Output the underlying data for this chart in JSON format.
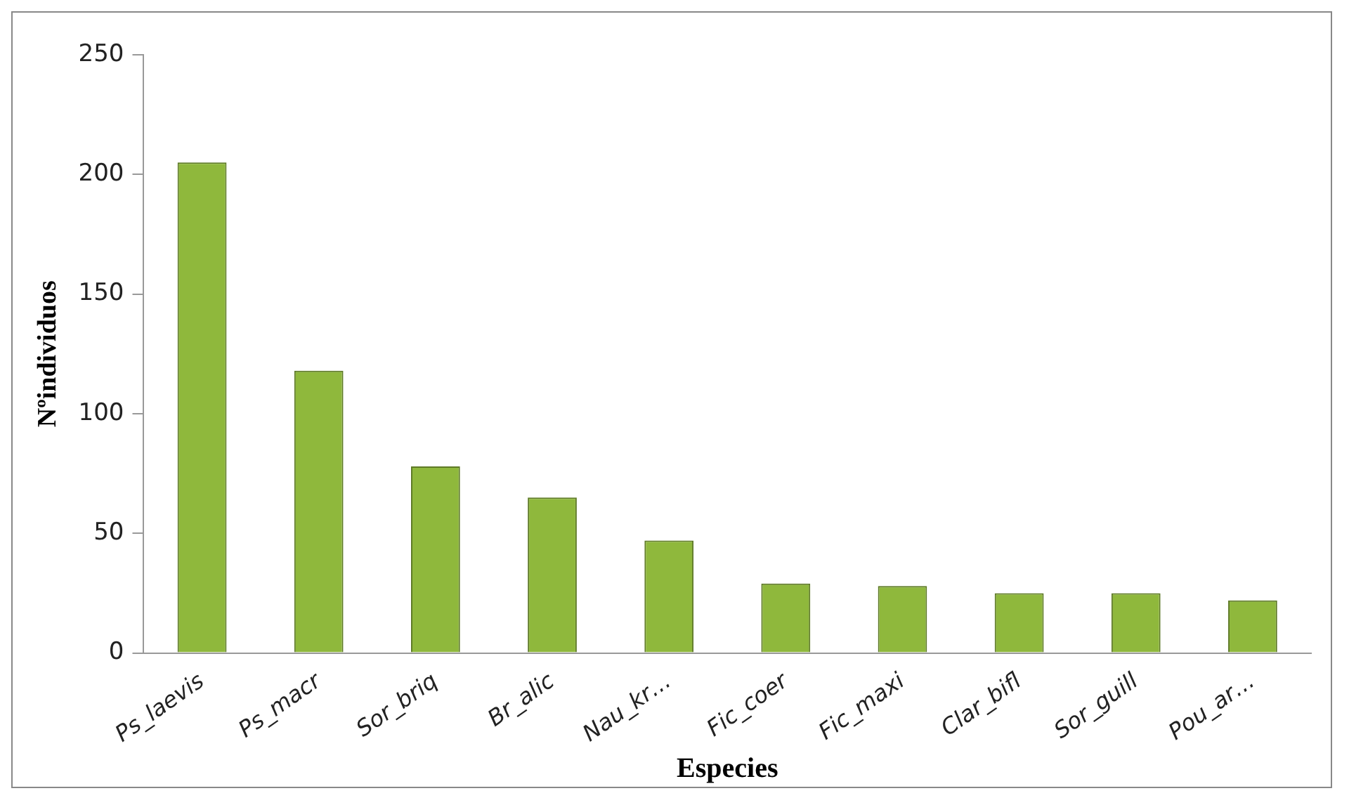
{
  "chart_data": {
    "type": "bar",
    "xlabel": "Especies",
    "ylabel": "Nºindividuos",
    "categories": [
      "Ps_laevis",
      "Ps_macr",
      "Sor_briq",
      "Br_alic",
      "Nau_kr…",
      "Fic_coer",
      "Fic_maxi",
      "Clar_bifl",
      "Sor_guill",
      "Pou_ar…"
    ],
    "values": [
      205,
      118,
      78,
      65,
      47,
      29,
      28,
      25,
      25,
      22
    ],
    "color": "#8fb83c",
    "ylim": [
      0,
      250
    ],
    "yticks": [
      0,
      50,
      100,
      150,
      200,
      250
    ],
    "grid": false,
    "legend": false
  }
}
